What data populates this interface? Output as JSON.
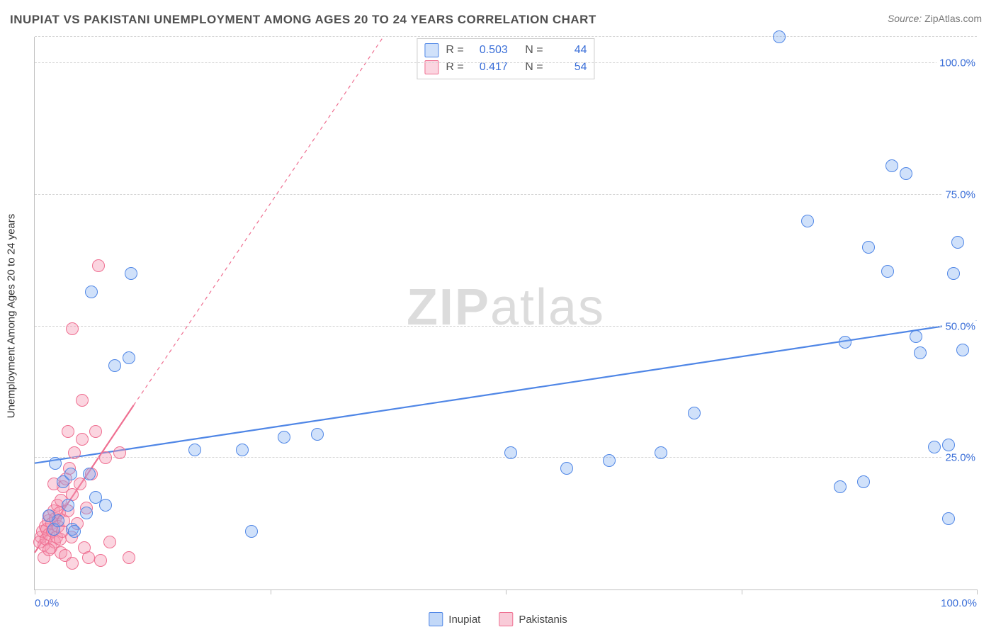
{
  "title": "INUPIAT VS PAKISTANI UNEMPLOYMENT AMONG AGES 20 TO 24 YEARS CORRELATION CHART",
  "source_label": "Source:",
  "source_value": "ZipAtlas.com",
  "yaxis_title": "Unemployment Among Ages 20 to 24 years",
  "watermark_a": "ZIP",
  "watermark_b": "atlas",
  "chart": {
    "type": "scatter",
    "xlim": [
      0,
      100
    ],
    "ylim": [
      0,
      105
    ],
    "grid_color": "#d5d5d5",
    "axis_color": "#c0c0c0",
    "background_color": "#ffffff",
    "tick_label_color": "#3b6fd8",
    "tick_fontsize": 15,
    "x_ticks": [
      0,
      25,
      50,
      75,
      100
    ],
    "x_tick_labels_start": "0.0%",
    "x_tick_labels_end": "100.0%",
    "y_gridlines": [
      25,
      50,
      75,
      100,
      105
    ],
    "y_tick_labels": {
      "25": "25.0%",
      "50": "50.0%",
      "75": "75.0%",
      "100": "100.0%"
    },
    "marker_radius": 9,
    "marker_border_width": 1.2,
    "marker_fill_opacity": 0.35
  },
  "series": [
    {
      "name": "Inupiat",
      "color": "#4f86e6",
      "fill": "rgba(120,168,240,0.35)",
      "border": "#4f86e6",
      "stats": {
        "R_label": "R =",
        "R": "0.503",
        "N_label": "N =",
        "N": "44"
      },
      "trend": {
        "x1": 0,
        "y1": 24,
        "x2": 100,
        "y2": 51,
        "width": 2.2,
        "dash": "none"
      },
      "trend_ext": null,
      "points": [
        [
          2.0,
          11.5
        ],
        [
          2.5,
          13.0
        ],
        [
          3.0,
          20.5
        ],
        [
          3.8,
          22.0
        ],
        [
          3.5,
          16.0
        ],
        [
          4.0,
          11.5
        ],
        [
          5.5,
          14.5
        ],
        [
          5.8,
          22.0
        ],
        [
          6.5,
          17.5
        ],
        [
          7.5,
          16.0
        ],
        [
          8.5,
          42.5
        ],
        [
          10.0,
          44.0
        ],
        [
          10.2,
          60.0
        ],
        [
          6.0,
          56.5
        ],
        [
          4.2,
          11.0
        ],
        [
          2.2,
          24.0
        ],
        [
          1.5,
          14.0
        ],
        [
          17.0,
          26.5
        ],
        [
          22.0,
          26.5
        ],
        [
          23.0,
          11.0
        ],
        [
          26.5,
          29.0
        ],
        [
          30.0,
          29.5
        ],
        [
          50.5,
          26.0
        ],
        [
          56.5,
          23.0
        ],
        [
          61.0,
          24.5
        ],
        [
          66.5,
          26.0
        ],
        [
          70.0,
          33.5
        ],
        [
          79.0,
          105.0
        ],
        [
          82.0,
          70.0
        ],
        [
          85.5,
          19.5
        ],
        [
          86.0,
          47.0
        ],
        [
          88.5,
          65.0
        ],
        [
          88.0,
          20.5
        ],
        [
          90.5,
          60.5
        ],
        [
          91.0,
          80.5
        ],
        [
          92.5,
          79.0
        ],
        [
          93.5,
          48.0
        ],
        [
          94.0,
          45.0
        ],
        [
          95.5,
          27.0
        ],
        [
          97.0,
          27.5
        ],
        [
          97.5,
          60.0
        ],
        [
          98.0,
          66.0
        ],
        [
          98.5,
          45.5
        ],
        [
          97.0,
          13.5
        ]
      ]
    },
    {
      "name": "Pakistanis",
      "color": "#ef6f91",
      "fill": "rgba(244,151,177,0.40)",
      "border": "#ef6f91",
      "stats": {
        "R_label": "R =",
        "R": "0.417",
        "N_label": "N =",
        "N": "54"
      },
      "trend": {
        "x1": 0,
        "y1": 7,
        "x2": 10.5,
        "y2": 35,
        "width": 2.2,
        "dash": "none"
      },
      "trend_ext": {
        "x1": 10.5,
        "y1": 35,
        "x2": 37,
        "y2": 105,
        "width": 1.2,
        "dash": "5,5"
      },
      "points": [
        [
          0.5,
          9.0
        ],
        [
          0.7,
          10.0
        ],
        [
          0.8,
          11.0
        ],
        [
          1.0,
          8.5
        ],
        [
          1.1,
          12.0
        ],
        [
          1.2,
          9.5
        ],
        [
          1.3,
          11.5
        ],
        [
          1.4,
          13.0
        ],
        [
          1.5,
          10.5
        ],
        [
          1.6,
          14.0
        ],
        [
          1.7,
          8.0
        ],
        [
          1.8,
          12.5
        ],
        [
          1.9,
          11.0
        ],
        [
          2.0,
          15.0
        ],
        [
          2.1,
          9.0
        ],
        [
          2.2,
          13.5
        ],
        [
          2.3,
          10.0
        ],
        [
          2.4,
          16.0
        ],
        [
          2.5,
          12.0
        ],
        [
          2.6,
          14.5
        ],
        [
          2.7,
          9.5
        ],
        [
          2.8,
          17.0
        ],
        [
          2.9,
          11.0
        ],
        [
          3.0,
          19.5
        ],
        [
          3.1,
          13.0
        ],
        [
          3.3,
          21.0
        ],
        [
          3.5,
          15.0
        ],
        [
          3.7,
          23.0
        ],
        [
          3.9,
          10.0
        ],
        [
          4.0,
          18.0
        ],
        [
          4.2,
          26.0
        ],
        [
          4.5,
          12.5
        ],
        [
          4.8,
          20.0
        ],
        [
          5.0,
          28.5
        ],
        [
          5.3,
          8.0
        ],
        [
          5.7,
          6.0
        ],
        [
          6.0,
          22.0
        ],
        [
          6.5,
          30.0
        ],
        [
          7.0,
          5.5
        ],
        [
          7.5,
          25.0
        ],
        [
          8.0,
          9.0
        ],
        [
          2.8,
          7.0
        ],
        [
          1.0,
          6.0
        ],
        [
          1.5,
          7.5
        ],
        [
          3.2,
          6.5
        ],
        [
          4.0,
          5.0
        ],
        [
          6.8,
          61.5
        ],
        [
          5.0,
          36.0
        ],
        [
          5.5,
          15.5
        ],
        [
          4.0,
          49.5
        ],
        [
          9.0,
          26.0
        ],
        [
          10.0,
          6.0
        ],
        [
          3.5,
          30.0
        ],
        [
          2.0,
          20.0
        ]
      ]
    }
  ],
  "bottom_legend": [
    {
      "label": "Inupiat",
      "fill": "rgba(120,168,240,0.45)",
      "border": "#4f86e6"
    },
    {
      "label": "Pakistanis",
      "fill": "rgba(244,151,177,0.50)",
      "border": "#ef6f91"
    }
  ]
}
